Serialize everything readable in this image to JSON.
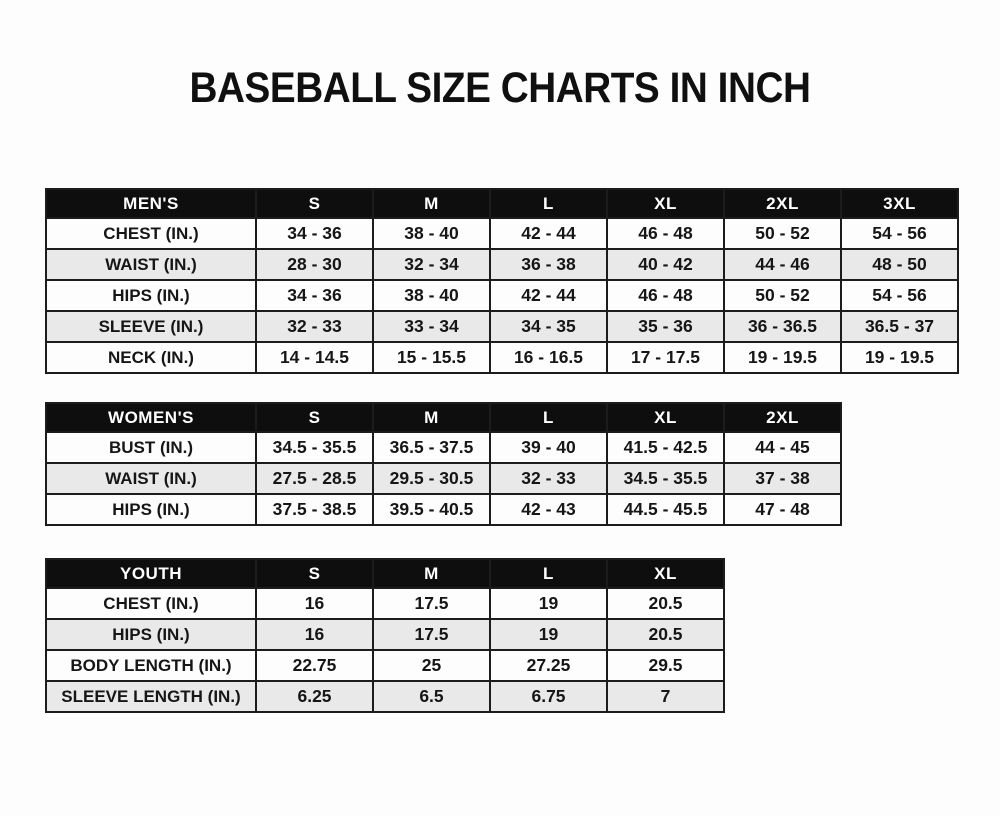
{
  "page_title": "BASEBALL SIZE CHARTS IN INCH",
  "colors": {
    "header_bg": "#0e0e0e",
    "header_text": "#ffffff",
    "row_bg": "#fdfdfd",
    "row_alt_bg": "#e9e9e9",
    "border": "#1c1c1c",
    "text": "#161616",
    "page_bg": "#fdfdfd"
  },
  "chart_data": [
    {
      "type": "table",
      "title": "MEN'S",
      "header": [
        "MEN'S",
        "S",
        "M",
        "L",
        "XL",
        "2XL",
        "3XL"
      ],
      "rows": [
        [
          "CHEST (IN.)",
          "34 - 36",
          "38 - 40",
          "42 - 44",
          "46 - 48",
          "50 - 52",
          "54 - 56"
        ],
        [
          "WAIST (IN.)",
          "28 - 30",
          "32 - 34",
          "36 - 38",
          "40 - 42",
          "44 - 46",
          "48 - 50"
        ],
        [
          "HIPS (IN.)",
          "34 - 36",
          "38 - 40",
          "42 - 44",
          "46 - 48",
          "50 - 52",
          "54 - 56"
        ],
        [
          "SLEEVE (IN.)",
          "32 - 33",
          "33 - 34",
          "34 - 35",
          "35 - 36",
          "36 - 36.5",
          "36.5 - 37"
        ],
        [
          "NECK (IN.)",
          "14 - 14.5",
          "15 - 15.5",
          "16 - 16.5",
          "17 - 17.5",
          "19 - 19.5",
          "19 - 19.5"
        ]
      ]
    },
    {
      "type": "table",
      "title": "WOMEN'S",
      "header": [
        "WOMEN'S",
        "S",
        "M",
        "L",
        "XL",
        "2XL"
      ],
      "rows": [
        [
          "BUST (IN.)",
          "34.5 - 35.5",
          "36.5 - 37.5",
          "39 - 40",
          "41.5 - 42.5",
          "44 - 45"
        ],
        [
          "WAIST (IN.)",
          "27.5 - 28.5",
          "29.5 - 30.5",
          "32 - 33",
          "34.5 - 35.5",
          "37 - 38"
        ],
        [
          "HIPS (IN.)",
          "37.5 - 38.5",
          "39.5 - 40.5",
          "42 - 43",
          "44.5 - 45.5",
          "47 - 48"
        ]
      ]
    },
    {
      "type": "table",
      "title": "YOUTH",
      "header": [
        "YOUTH",
        "S",
        "M",
        "L",
        "XL"
      ],
      "rows": [
        [
          "CHEST (IN.)",
          "16",
          "17.5",
          "19",
          "20.5"
        ],
        [
          "HIPS (IN.)",
          "16",
          "17.5",
          "19",
          "20.5"
        ],
        [
          "BODY LENGTH (IN.)",
          "22.75",
          "25",
          "27.25",
          "29.5"
        ],
        [
          "SLEEVE LENGTH (IN.)",
          "6.25",
          "6.5",
          "6.75",
          "7"
        ]
      ]
    }
  ]
}
